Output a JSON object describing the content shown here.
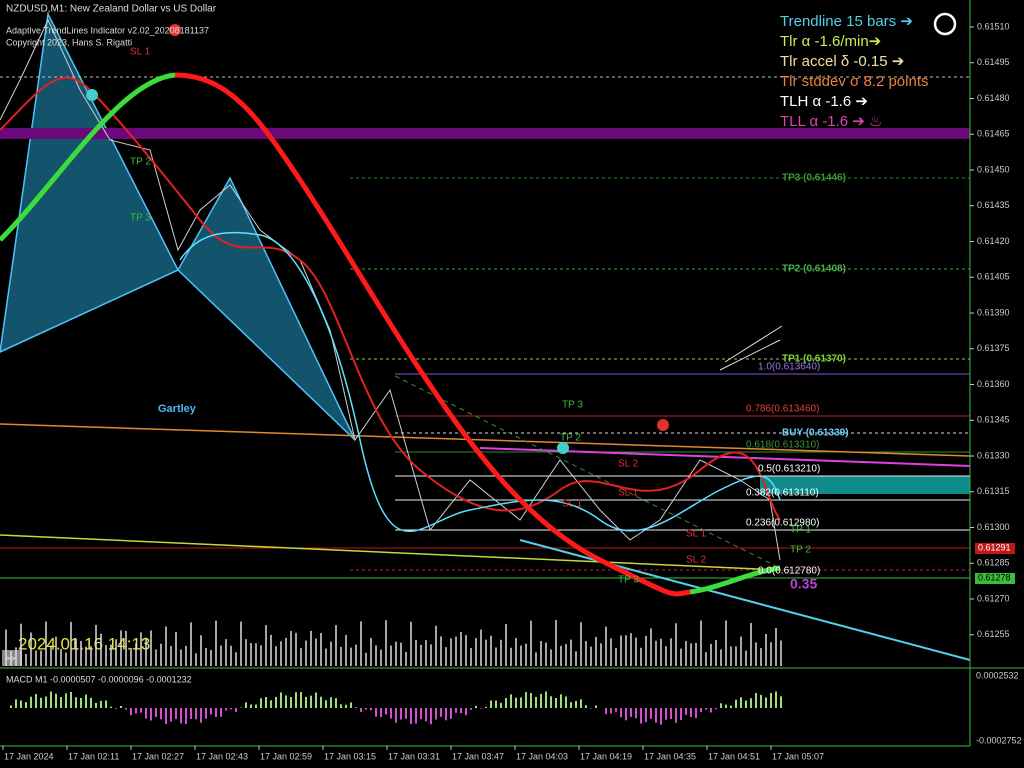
{
  "header": {
    "symbol": "NZDUSD,M1:  New Zealand Dollar vs US Dollar",
    "indicator": "Adaptive TrendLines Indicator v2.02_20208181137",
    "copyright": "Copyright 2023, Hans S. Rigatti"
  },
  "info_panel": [
    "Trendline 15 bars ➔",
    "Tlr α -1.6/min➔",
    "Tlr accel δ -0.15 ➔",
    "Tlr stddev σ 8.2 points",
    "TLH α -1.6  ➔",
    "TLL α -1.6  ➔ ♨"
  ],
  "price_axis": [
    "0.61510",
    "0.61495",
    "0.61480",
    "0.61465",
    "0.61450",
    "0.61435",
    "0.61420",
    "0.61405",
    "0.61390",
    "0.61375",
    "0.61360",
    "0.61345",
    "0.61330",
    "0.61315",
    "0.61300",
    "0.61285",
    "0.61270",
    "0.61255"
  ],
  "price_tags": [
    "0.61291",
    "0.61278"
  ],
  "levels": [
    "TP3 (0.61446)",
    "TP2 (0.61408)",
    "TP1 (0.61370)",
    "1.0(0.613640)",
    "0.786(0.613460)",
    "BUY (0.61339)",
    "0.618(0.613310)",
    "0.5(0.613210)",
    "0.382(0.613110)",
    "0.236(0.612980)",
    "0.0(0.612780)"
  ],
  "trade_labels": [
    "SL 1",
    "TP 2",
    "TP 3",
    "TP 3",
    "TP 2",
    "SL 2",
    "SL 1",
    "SL 1",
    "SL 1",
    "TP 1",
    "TP 2",
    "SL 2",
    "TP 3"
  ],
  "pattern": "Gartley",
  "timestamp": "2024.01.16 14:13",
  "ratio": "0.35",
  "macd": {
    "title": "MACD M1 -0.0000507 -0.0000096 -0.0001232",
    "max": "0.0002532",
    "min": "-0.0002752"
  },
  "time_axis": [
    "17 Jan 2024",
    "17 Jan 02:11",
    "17 Jan 02:27",
    "17 Jan 02:43",
    "17 Jan 02:59",
    "17 Jan 03:15",
    "17 Jan 03:31",
    "17 Jan 03:47",
    "17 Jan 04:03",
    "17 Jan 04:19",
    "17 Jan 04:35",
    "17 Jan 04:51",
    "17 Jan 05:07"
  ]
}
